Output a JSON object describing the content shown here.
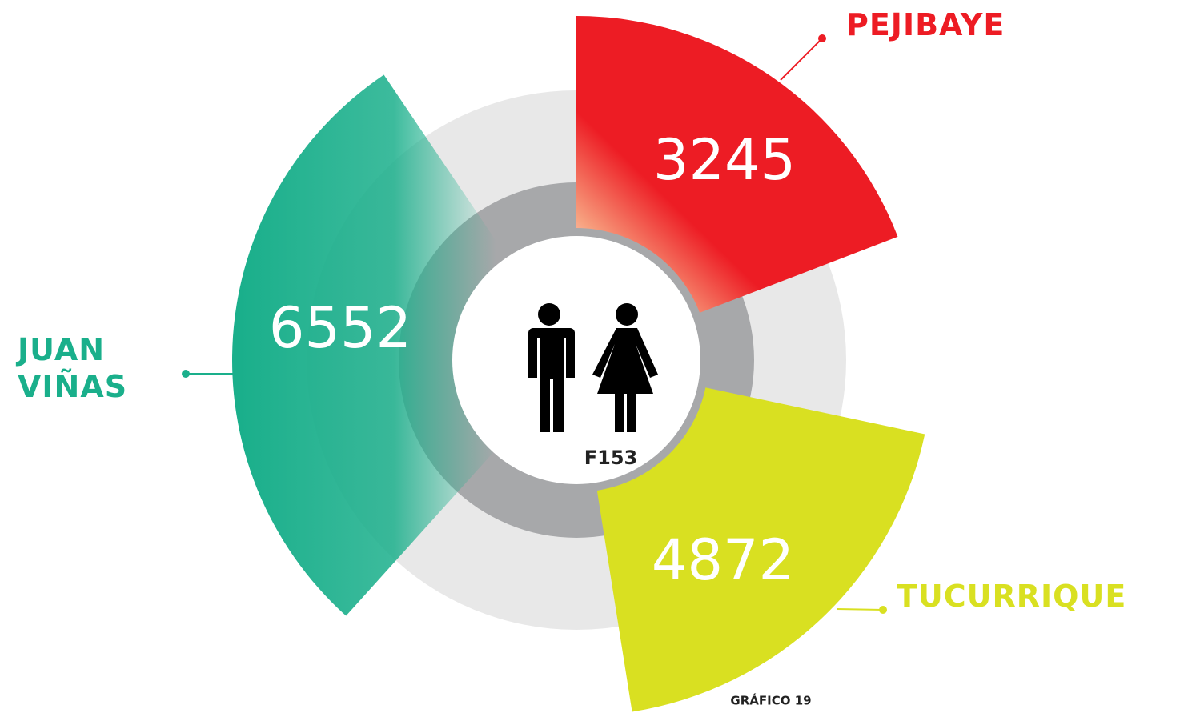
{
  "chart_data": {
    "type": "radial-sectors",
    "categories": [
      "PEJIBAYE",
      "JUAN VIÑAS",
      "TUCURRIQUE"
    ],
    "values": [
      3245,
      6552,
      4872
    ],
    "colors": [
      "#ed1c24",
      "#1aaf8b",
      "#d9e021"
    ],
    "center_label": "F153",
    "footer": "GRÁFICO 19"
  }
}
